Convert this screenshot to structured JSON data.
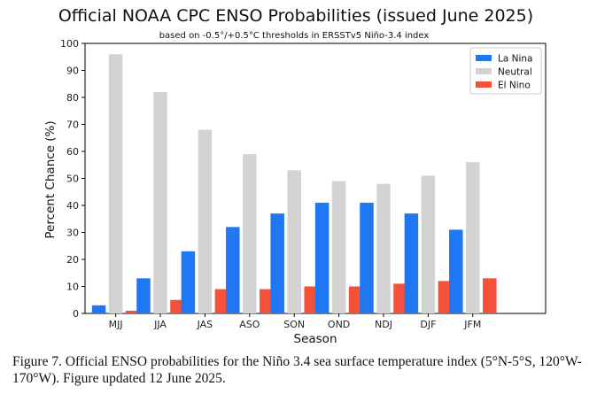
{
  "chart_data": {
    "type": "bar",
    "title": "Official NOAA CPC ENSO Probabilities (issued June 2025)",
    "subtitle": "based on -0.5°/+0.5°C thresholds in ERSSTv5 Niño-3.4 index",
    "xlabel": "Season",
    "ylabel": "Percent Chance (%)",
    "ylim": [
      0,
      100
    ],
    "yticks": [
      0,
      10,
      20,
      30,
      40,
      50,
      60,
      70,
      80,
      90,
      100
    ],
    "categories": [
      "MJJ",
      "JJA",
      "JAS",
      "ASO",
      "SON",
      "OND",
      "NDJ",
      "DJF",
      "JFM"
    ],
    "legend_position": "top-right",
    "grid": false,
    "series": [
      {
        "name": "La Nina",
        "color": "#1f77f4",
        "values": [
          3,
          13,
          23,
          32,
          37,
          41,
          41,
          37,
          31
        ]
      },
      {
        "name": "Neutral",
        "color": "#d3d3d3",
        "values": [
          96,
          82,
          68,
          59,
          53,
          49,
          48,
          51,
          56
        ]
      },
      {
        "name": "El Nino",
        "color": "#f4513a",
        "values": [
          1,
          5,
          9,
          9,
          10,
          10,
          11,
          12,
          13
        ]
      }
    ]
  },
  "caption": "Figure 7. Official ENSO probabilities for the Niño 3.4 sea surface temperature index (5°N-5°S, 120°W-170°W). Figure updated 12 June 2025."
}
